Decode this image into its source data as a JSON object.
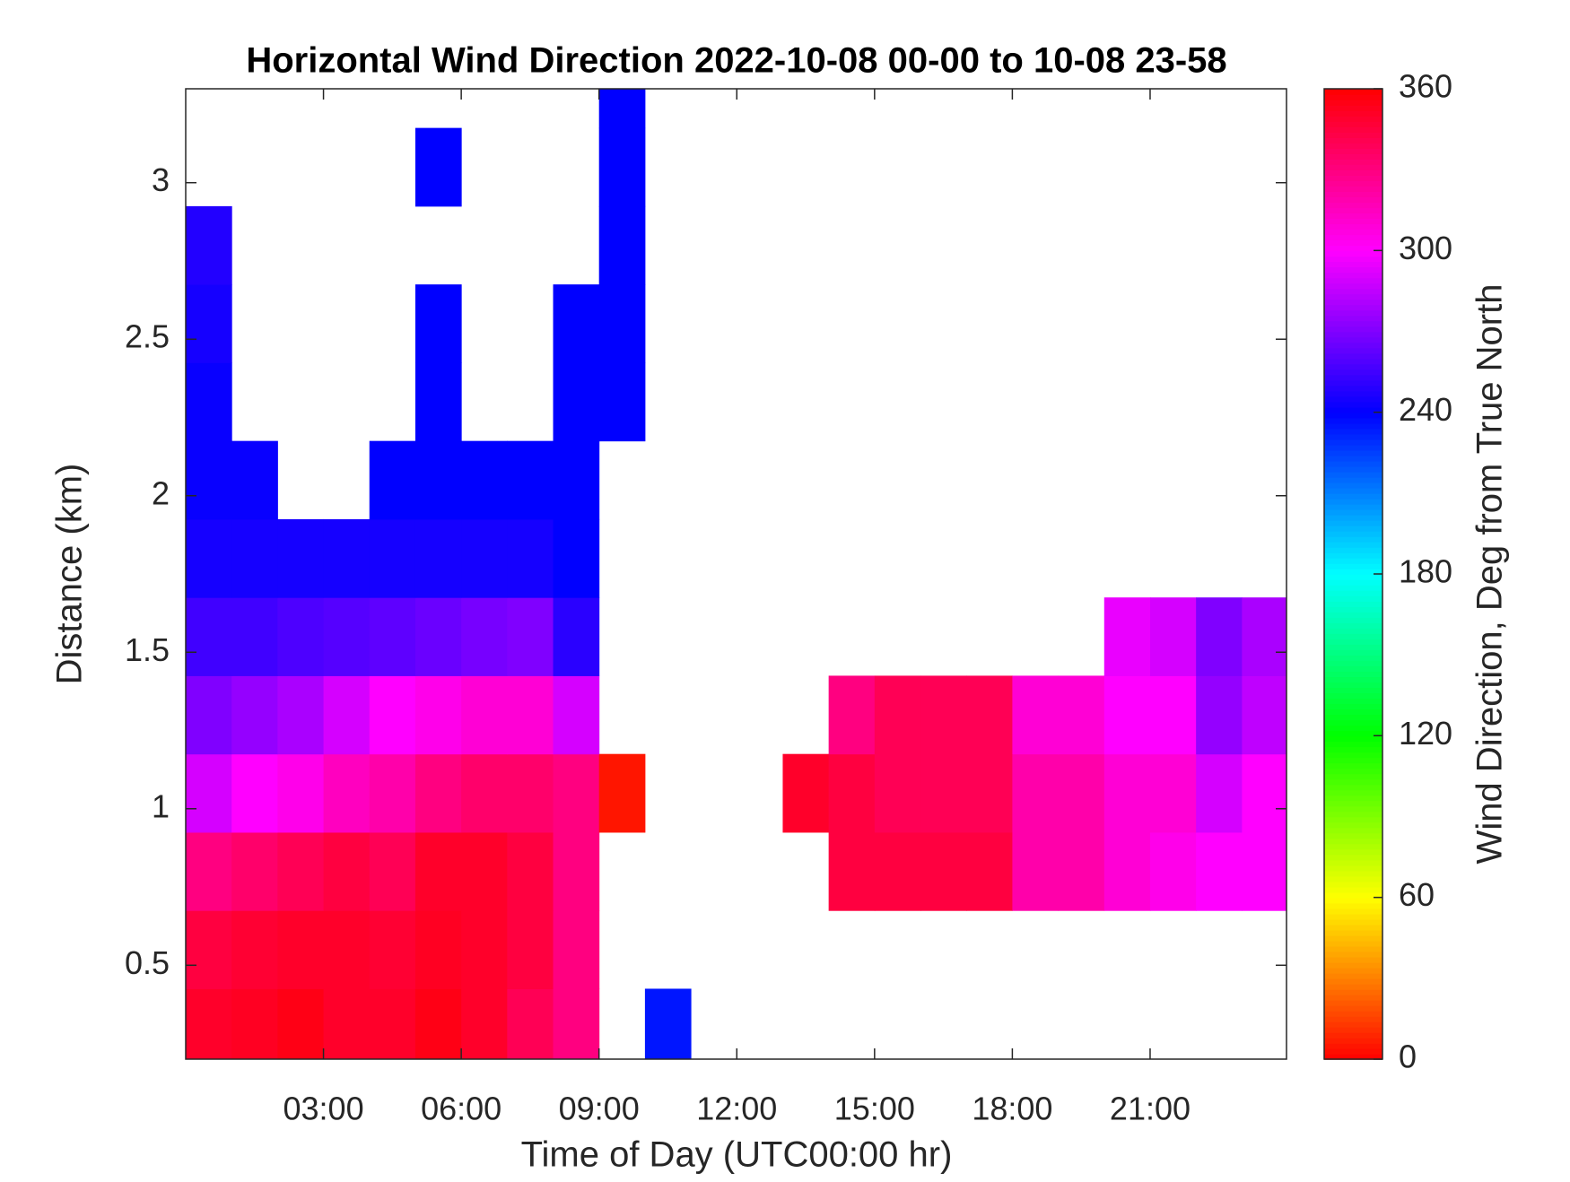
{
  "chart_data": {
    "type": "heatmap",
    "title": "Horizontal Wind Direction 2022-10-08 00-00 to 10-08 23-58",
    "x_label": "Time of Day (UTC00:00 hr)",
    "y_label": "Distance (km)",
    "colormap": "hsv",
    "xlim": [
      0,
      23.97
    ],
    "xticks": [
      {
        "value": 3,
        "label": "03:00"
      },
      {
        "value": 6,
        "label": "06:00"
      },
      {
        "value": 9,
        "label": "09:00"
      },
      {
        "value": 12,
        "label": "12:00"
      },
      {
        "value": 15,
        "label": "15:00"
      },
      {
        "value": 18,
        "label": "18:00"
      },
      {
        "value": 21,
        "label": "21:00"
      }
    ],
    "ylim": [
      0.2,
      3.3
    ],
    "yticks": [
      0.5,
      1,
      1.5,
      2,
      2.5,
      3
    ],
    "x": [
      0.5,
      1.5,
      2.5,
      3.5,
      4.5,
      5.5,
      6.5,
      7.5,
      8.5,
      9.5,
      10.5,
      11.5,
      12.5,
      13.5,
      14.5,
      15.5,
      16.5,
      17.5,
      18.5,
      19.5,
      20.5,
      21.5,
      22.5,
      23.5
    ],
    "y": [
      0.3,
      0.55,
      0.8,
      1.05,
      1.3,
      1.55,
      1.8,
      2.05,
      2.3,
      2.55,
      2.8,
      3.05,
      3.3
    ],
    "values": [
      [
        350,
        352,
        355,
        350,
        350,
        355,
        350,
        340,
        330,
        null,
        235,
        null,
        null,
        null,
        null,
        null,
        null,
        null,
        null,
        null,
        null,
        null,
        null,
        null
      ],
      [
        345,
        348,
        350,
        350,
        348,
        352,
        350,
        345,
        330,
        null,
        null,
        null,
        null,
        null,
        null,
        null,
        null,
        null,
        null,
        null,
        null,
        null,
        null,
        null
      ],
      [
        330,
        335,
        340,
        345,
        340,
        350,
        350,
        345,
        330,
        null,
        null,
        null,
        null,
        null,
        345,
        345,
        345,
        345,
        320,
        320,
        310,
        305,
        300,
        300
      ],
      [
        290,
        300,
        305,
        315,
        320,
        330,
        335,
        335,
        330,
        5,
        null,
        null,
        null,
        350,
        345,
        340,
        340,
        340,
        320,
        320,
        310,
        310,
        290,
        300
      ],
      [
        270,
        275,
        280,
        290,
        300,
        305,
        310,
        310,
        290,
        null,
        null,
        null,
        null,
        null,
        330,
        340,
        340,
        340,
        310,
        310,
        300,
        300,
        275,
        285
      ],
      [
        255,
        255,
        258,
        260,
        262,
        265,
        268,
        270,
        250,
        null,
        null,
        null,
        null,
        null,
        null,
        null,
        null,
        null,
        null,
        null,
        295,
        290,
        270,
        280
      ],
      [
        245,
        245,
        245,
        245,
        245,
        245,
        245,
        245,
        240,
        null,
        null,
        null,
        null,
        null,
        null,
        null,
        null,
        null,
        null,
        null,
        null,
        null,
        null,
        null
      ],
      [
        242,
        242,
        null,
        null,
        240,
        240,
        240,
        240,
        240,
        null,
        null,
        null,
        null,
        null,
        null,
        null,
        null,
        null,
        null,
        null,
        null,
        null,
        null,
        null
      ],
      [
        242,
        null,
        null,
        null,
        null,
        240,
        null,
        null,
        240,
        240,
        null,
        null,
        null,
        null,
        null,
        null,
        null,
        null,
        null,
        null,
        null,
        null,
        null,
        null
      ],
      [
        245,
        null,
        null,
        null,
        null,
        240,
        null,
        null,
        240,
        240,
        null,
        null,
        null,
        null,
        null,
        null,
        null,
        null,
        null,
        null,
        null,
        null,
        null,
        null
      ],
      [
        248,
        null,
        null,
        null,
        null,
        null,
        null,
        null,
        null,
        240,
        null,
        null,
        null,
        null,
        null,
        null,
        null,
        null,
        null,
        null,
        null,
        null,
        null,
        null
      ],
      [
        null,
        null,
        null,
        null,
        null,
        240,
        null,
        null,
        null,
        240,
        null,
        null,
        null,
        null,
        null,
        null,
        null,
        null,
        null,
        null,
        null,
        null,
        null,
        null
      ],
      [
        null,
        null,
        null,
        null,
        null,
        null,
        null,
        null,
        null,
        240,
        null,
        null,
        null,
        null,
        null,
        null,
        null,
        null,
        null,
        null,
        null,
        null,
        null,
        null
      ]
    ],
    "colorbar": {
      "label": "Wind Direction, Deg from True North",
      "lim": [
        0,
        360
      ],
      "ticks": [
        0,
        60,
        120,
        180,
        240,
        300,
        360
      ]
    }
  }
}
